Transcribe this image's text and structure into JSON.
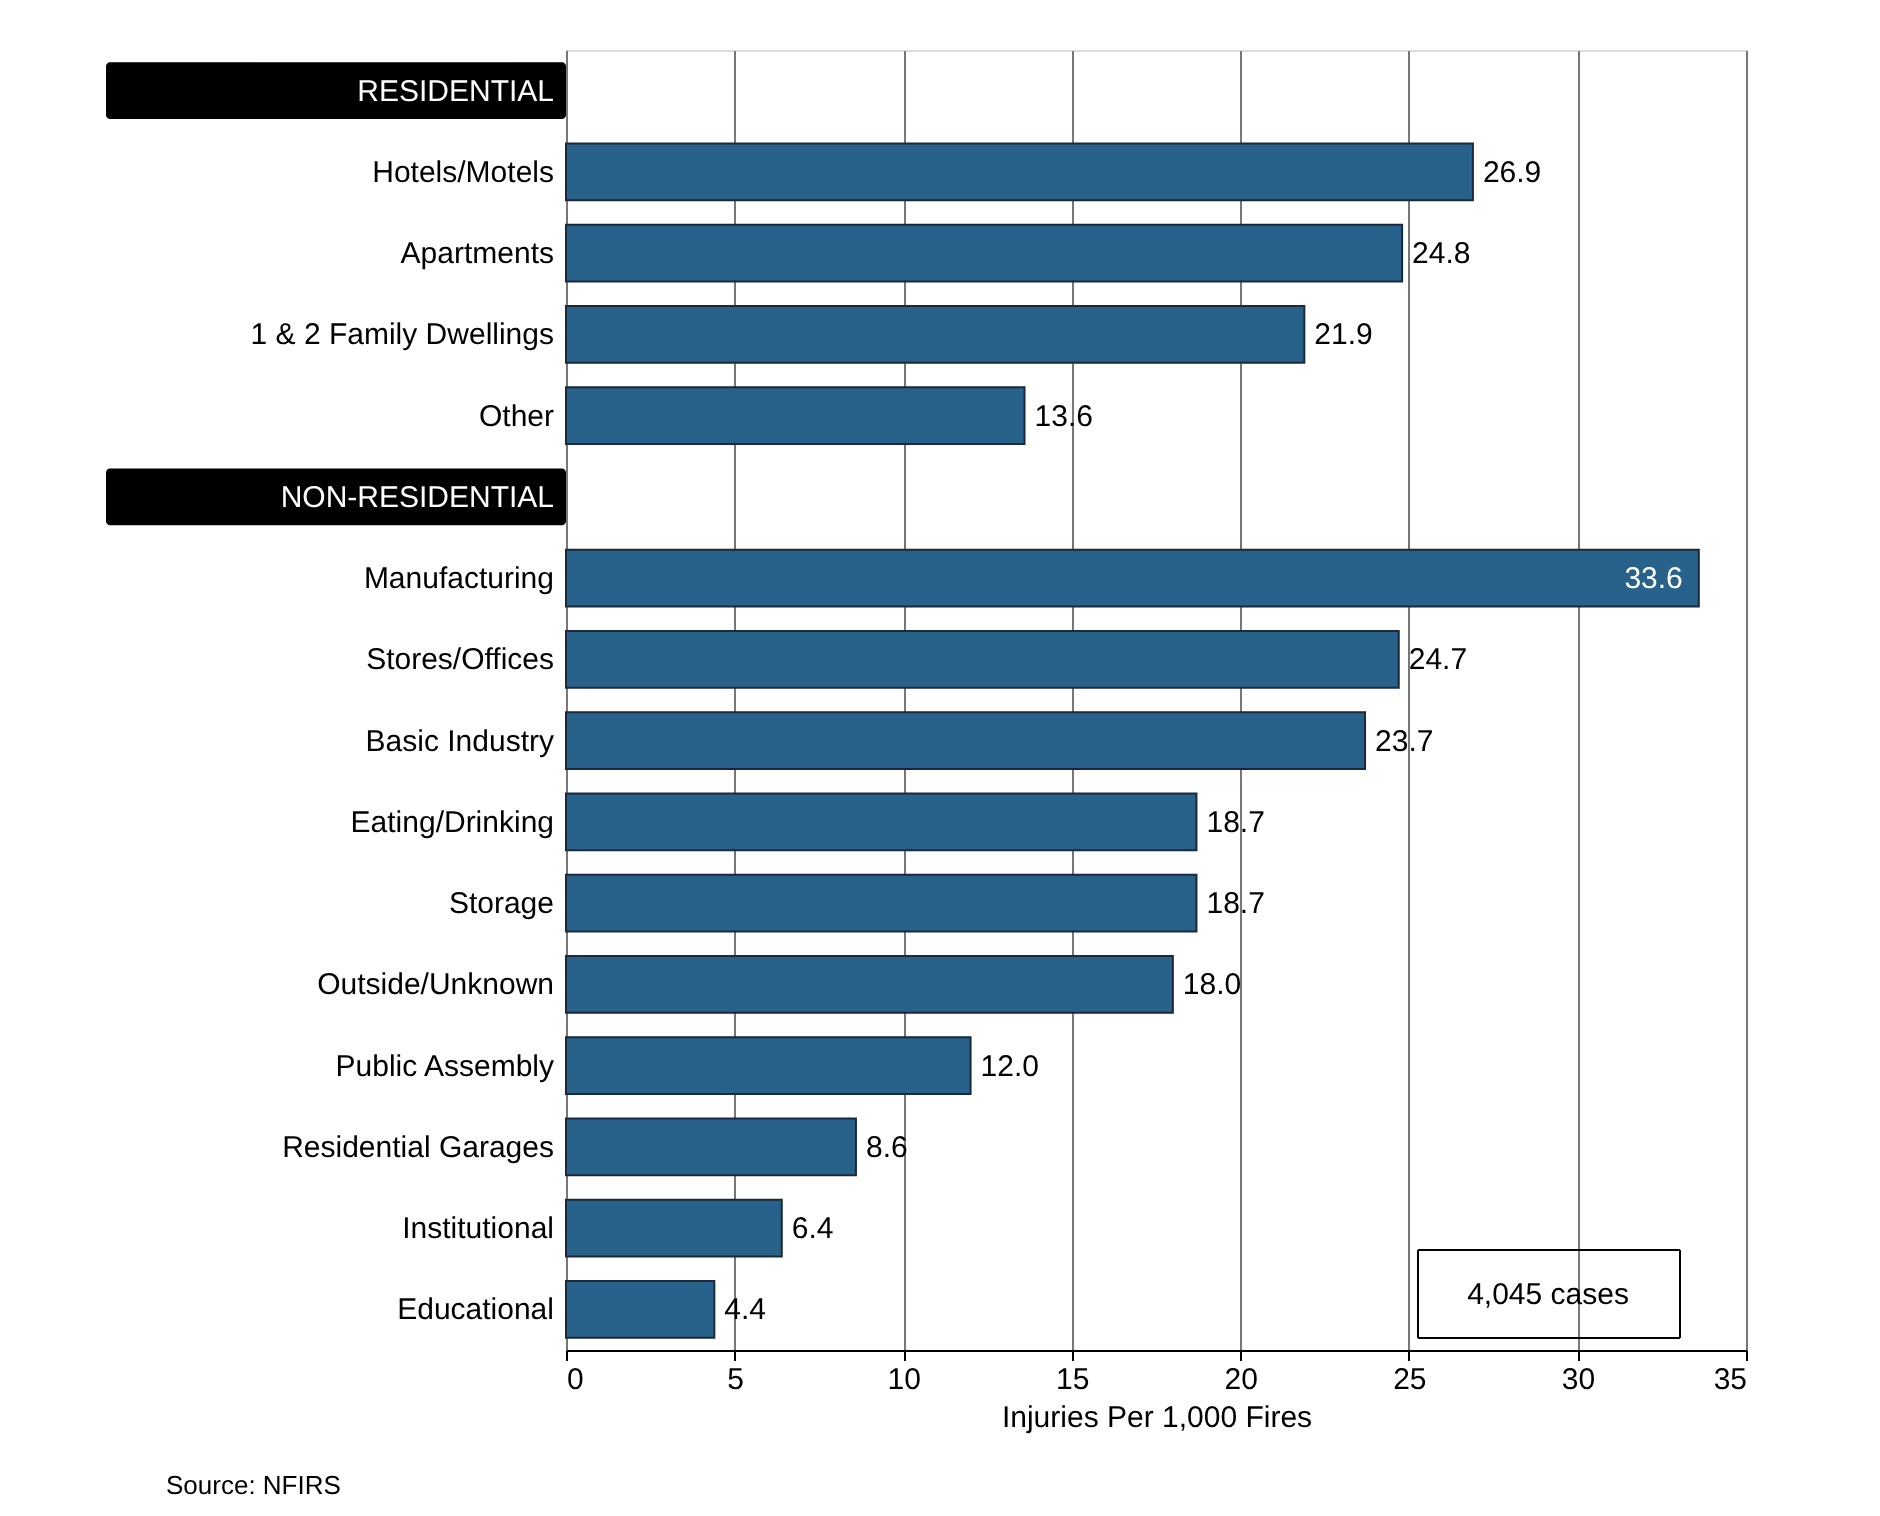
{
  "chart_data": {
    "type": "bar",
    "orientation": "horizontal",
    "categories": [
      "RESIDENTIAL",
      "Hotels/Motels",
      "Apartments",
      "1 & 2 Family Dwellings",
      "Other",
      "NON-RESIDENTIAL",
      "Manufacturing",
      "Stores/Offices",
      "Basic Industry",
      "Eating/Drinking",
      "Storage",
      "Outside/Unknown",
      "Public Assembly",
      "Residential Garages",
      "Institutional",
      "Educational"
    ],
    "values": [
      null,
      26.9,
      24.8,
      21.9,
      13.6,
      null,
      33.6,
      24.7,
      23.7,
      18.7,
      18.7,
      18.0,
      12.0,
      8.6,
      6.4,
      4.4
    ],
    "value_labels": [
      null,
      "26.9",
      "24.8",
      "21.9",
      "13.6",
      null,
      "33.6",
      "24.7",
      "23.7",
      "18.7",
      "18.7",
      "18.0",
      "12.0",
      "8.6",
      "6.4",
      "4.4"
    ],
    "color": "#28618a",
    "xlabel": "Injuries Per 1,000 Fires",
    "xlim": [
      0,
      35
    ],
    "xticks": [
      0,
      5,
      10,
      15,
      20,
      25,
      30,
      35
    ],
    "grid": "x",
    "annotations": [
      "4,045 cases",
      "Source: NFIRS"
    ]
  }
}
